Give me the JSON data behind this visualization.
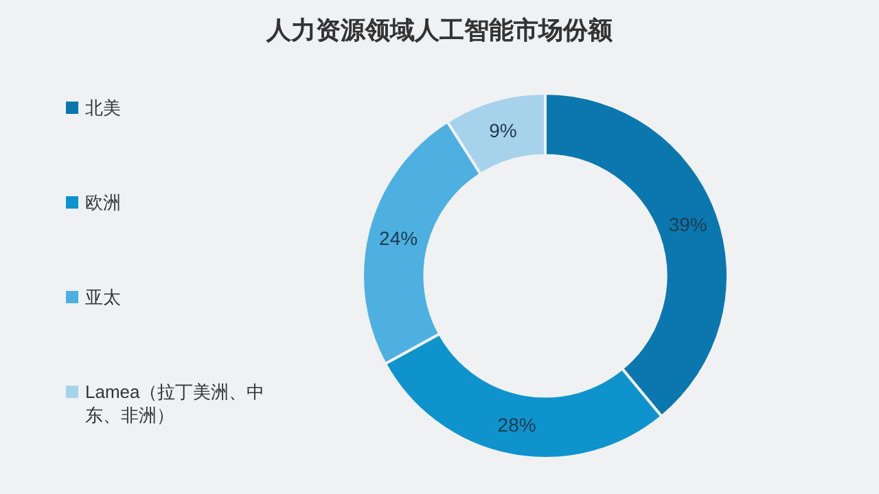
{
  "chart_data": {
    "type": "donut",
    "title": "人力资源领域人工智能市场份额",
    "categories": [
      "北美",
      "欧洲",
      "亚太",
      "Lamea（拉丁美洲、中东、非洲）"
    ],
    "values": [
      39,
      28,
      24,
      9
    ],
    "colors": [
      "#0a78ae",
      "#0f93cc",
      "#4db0e0",
      "#a6d2ec"
    ],
    "value_labels": [
      "39%",
      "28%",
      "24%",
      "9%"
    ],
    "legend": "left"
  }
}
